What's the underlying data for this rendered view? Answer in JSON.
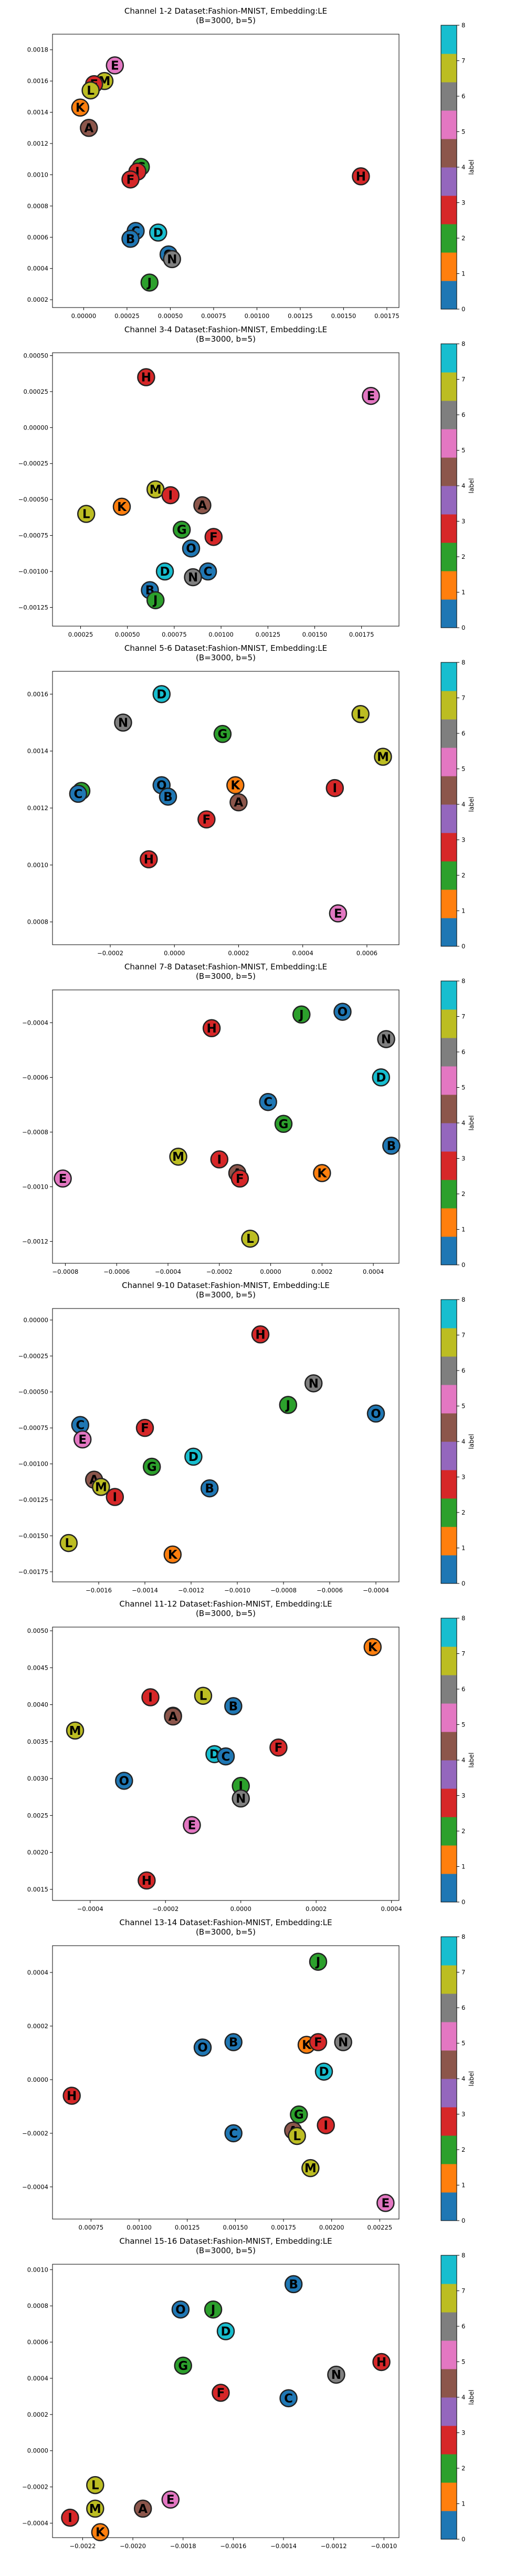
{
  "colorbar": {
    "label": "label",
    "ticks": [
      "0",
      "1",
      "2",
      "3",
      "4",
      "5",
      "6",
      "7",
      "8"
    ],
    "colors": [
      "#1f77b4",
      "#ff7f0e",
      "#2ca02c",
      "#d62728",
      "#9467bd",
      "#8c564b",
      "#e377c2",
      "#7f7f7f",
      "#bcbd22",
      "#17becf"
    ]
  },
  "label_colors": {
    "A": "#8c564b",
    "B": "#1f77b4",
    "C": "#1f77b4",
    "D": "#17becf",
    "E": "#e377c2",
    "F": "#d62728",
    "G": "#2ca02c",
    "H": "#d62728",
    "I": "#d62728",
    "J": "#2ca02c",
    "K": "#ff7f0e",
    "L": "#bcbd22",
    "M": "#bcbd22",
    "N": "#7f7f7f",
    "O": "#1f77b4"
  },
  "chart_data": [
    {
      "type": "scatter",
      "title": "Channel 1-2 Dataset:Fashion-MNIST, Embedding:LE\n(B=3000, b=5)",
      "xlim": [
        -0.00018,
        0.00182
      ],
      "ylim": [
        0.00015,
        0.0019
      ],
      "xticks": [
        "0.00000",
        "0.00025",
        "0.00050",
        "0.00075",
        "0.00100",
        "0.00125",
        "0.00150",
        "0.00175"
      ],
      "xtick_values": [
        0,
        0.00025,
        0.0005,
        0.00075,
        0.001,
        0.00125,
        0.0015,
        0.00175
      ],
      "yticks": [
        "0.0002",
        "0.0004",
        "0.0006",
        "0.0008",
        "0.0010",
        "0.0012",
        "0.0014",
        "0.0016",
        "0.0018"
      ],
      "ytick_values": [
        0.0002,
        0.0004,
        0.0006,
        0.0008,
        0.001,
        0.0012,
        0.0014,
        0.0016,
        0.0018
      ],
      "points": [
        {
          "label": "E",
          "x": 0.00018,
          "y": 0.0017
        },
        {
          "label": "M",
          "x": 0.00012,
          "y": 0.0016
        },
        {
          "label": "F",
          "x": 6e-05,
          "y": 0.00158
        },
        {
          "label": "L",
          "x": 4e-05,
          "y": 0.00154
        },
        {
          "label": "K",
          "x": -2e-05,
          "y": 0.00143
        },
        {
          "label": "A",
          "x": 3e-05,
          "y": 0.0013
        },
        {
          "label": "G",
          "x": 0.00033,
          "y": 0.00105
        },
        {
          "label": "I",
          "x": 0.00031,
          "y": 0.00102
        },
        {
          "label": "F",
          "x": 0.00027,
          "y": 0.00097
        },
        {
          "label": "H",
          "x": 0.0016,
          "y": 0.00099
        },
        {
          "label": "C",
          "x": 0.0003,
          "y": 0.00064
        },
        {
          "label": "D",
          "x": 0.00043,
          "y": 0.00063
        },
        {
          "label": "B",
          "x": 0.00027,
          "y": 0.00059
        },
        {
          "label": "O",
          "x": 0.00049,
          "y": 0.00049
        },
        {
          "label": "N",
          "x": 0.00051,
          "y": 0.00046
        },
        {
          "label": "J",
          "x": 0.00038,
          "y": 0.00031
        }
      ]
    },
    {
      "type": "scatter",
      "title": "Channel 3-4 Dataset:Fashion-MNIST, Embedding:LE\n(B=3000, b=5)",
      "xlim": [
        0.0001,
        0.00195
      ],
      "ylim": [
        -0.00138,
        0.00052
      ],
      "xticks": [
        "0.00025",
        "0.00050",
        "0.00075",
        "0.00100",
        "0.00125",
        "0.00150",
        "0.00175"
      ],
      "xtick_values": [
        0.00025,
        0.0005,
        0.00075,
        0.001,
        0.00125,
        0.0015,
        0.00175
      ],
      "yticks": [
        "−0.00125",
        "−0.00100",
        "−0.00075",
        "−0.00050",
        "−0.00025",
        "0.00000",
        "0.00025",
        "0.00050"
      ],
      "ytick_values": [
        -0.00125,
        -0.001,
        -0.00075,
        -0.0005,
        -0.00025,
        0,
        0.00025,
        0.0005
      ],
      "points": [
        {
          "label": "H",
          "x": 0.0006,
          "y": 0.00035
        },
        {
          "label": "E",
          "x": 0.0018,
          "y": 0.00022
        },
        {
          "label": "M",
          "x": 0.00065,
          "y": -0.00043
        },
        {
          "label": "I",
          "x": 0.00073,
          "y": -0.00047
        },
        {
          "label": "K",
          "x": 0.00047,
          "y": -0.00055
        },
        {
          "label": "L",
          "x": 0.00028,
          "y": -0.0006
        },
        {
          "label": "A",
          "x": 0.0009,
          "y": -0.00054
        },
        {
          "label": "G",
          "x": 0.00079,
          "y": -0.00071
        },
        {
          "label": "F",
          "x": 0.00096,
          "y": -0.00076
        },
        {
          "label": "O",
          "x": 0.00084,
          "y": -0.00084
        },
        {
          "label": "D",
          "x": 0.0007,
          "y": -0.001
        },
        {
          "label": "C",
          "x": 0.00093,
          "y": -0.001
        },
        {
          "label": "N",
          "x": 0.00085,
          "y": -0.00104
        },
        {
          "label": "B",
          "x": 0.00062,
          "y": -0.00113
        },
        {
          "label": "J",
          "x": 0.00065,
          "y": -0.0012
        }
      ]
    },
    {
      "type": "scatter",
      "title": "Channel 5-6 Dataset:Fashion-MNIST, Embedding:LE\n(B=3000, b=5)",
      "xlim": [
        -0.00038,
        0.0007
      ],
      "ylim": [
        0.00072,
        0.00168
      ],
      "xticks": [
        "−0.0002",
        "0.0000",
        "0.0002",
        "0.0004",
        "0.0006"
      ],
      "xtick_values": [
        -0.0002,
        0,
        0.0002,
        0.0004,
        0.0006
      ],
      "yticks": [
        "0.0008",
        "0.0010",
        "0.0012",
        "0.0014",
        "0.0016"
      ],
      "ytick_values": [
        0.0008,
        0.001,
        0.0012,
        0.0014,
        0.0016
      ],
      "points": [
        {
          "label": "D",
          "x": -4e-05,
          "y": 0.0016
        },
        {
          "label": "L",
          "x": 0.00058,
          "y": 0.00153
        },
        {
          "label": "N",
          "x": -0.00016,
          "y": 0.0015
        },
        {
          "label": "G",
          "x": 0.00015,
          "y": 0.00146
        },
        {
          "label": "M",
          "x": 0.00065,
          "y": 0.00138
        },
        {
          "label": "O",
          "x": -4e-05,
          "y": 0.00128
        },
        {
          "label": "K",
          "x": 0.00019,
          "y": 0.00128
        },
        {
          "label": "I",
          "x": 0.0005,
          "y": 0.00127
        },
        {
          "label": "J",
          "x": -0.00029,
          "y": 0.00126
        },
        {
          "label": "C",
          "x": -0.0003,
          "y": 0.00125
        },
        {
          "label": "B",
          "x": -2e-05,
          "y": 0.00124
        },
        {
          "label": "A",
          "x": 0.0002,
          "y": 0.00122
        },
        {
          "label": "F",
          "x": 0.0001,
          "y": 0.00116
        },
        {
          "label": "H",
          "x": -8e-05,
          "y": 0.00102
        },
        {
          "label": "E",
          "x": 0.00051,
          "y": 0.00083
        }
      ]
    },
    {
      "type": "scatter",
      "title": "Channel 7-8 Dataset:Fashion-MNIST, Embedding:LE\n(B=3000, b=5)",
      "xlim": [
        -0.00085,
        0.0005
      ],
      "ylim": [
        -0.00128,
        -0.00028
      ],
      "xticks": [
        "−0.0008",
        "−0.0006",
        "−0.0004",
        "−0.0002",
        "0.0000",
        "0.0002",
        "0.0004"
      ],
      "xtick_values": [
        -0.0008,
        -0.0006,
        -0.0004,
        -0.0002,
        0,
        0.0002,
        0.0004
      ],
      "yticks": [
        "−0.0012",
        "−0.0010",
        "−0.0008",
        "−0.0006",
        "−0.0004"
      ],
      "ytick_values": [
        -0.0012,
        -0.001,
        -0.0008,
        -0.0006,
        -0.0004
      ],
      "points": [
        {
          "label": "O",
          "x": 0.00028,
          "y": -0.00036
        },
        {
          "label": "J",
          "x": 0.00012,
          "y": -0.00037
        },
        {
          "label": "H",
          "x": -0.00023,
          "y": -0.00042
        },
        {
          "label": "N",
          "x": 0.00045,
          "y": -0.00046
        },
        {
          "label": "D",
          "x": 0.00043,
          "y": -0.0006
        },
        {
          "label": "C",
          "x": -1e-05,
          "y": -0.00069
        },
        {
          "label": "G",
          "x": 5e-05,
          "y": -0.00077
        },
        {
          "label": "B",
          "x": 0.00047,
          "y": -0.00085
        },
        {
          "label": "I",
          "x": -0.0002,
          "y": -0.0009
        },
        {
          "label": "M",
          "x": -0.00036,
          "y": -0.00089
        },
        {
          "label": "A",
          "x": -0.00013,
          "y": -0.00095
        },
        {
          "label": "F",
          "x": -0.00012,
          "y": -0.00097
        },
        {
          "label": "K",
          "x": 0.0002,
          "y": -0.00095
        },
        {
          "label": "E",
          "x": -0.00081,
          "y": -0.00097
        },
        {
          "label": "L",
          "x": -8e-05,
          "y": -0.00119
        }
      ]
    },
    {
      "type": "scatter",
      "title": "Channel 9-10 Dataset:Fashion-MNIST, Embedding:LE\n(B=3000, b=5)",
      "xlim": [
        -0.0018,
        -0.0003
      ],
      "ylim": [
        -0.00182,
        8e-05
      ],
      "xticks": [
        "−0.0016",
        "−0.0014",
        "−0.0012",
        "−0.0010",
        "−0.0008",
        "−0.0006",
        "−0.0004"
      ],
      "xtick_values": [
        -0.0016,
        -0.0014,
        -0.0012,
        -0.001,
        -0.0008,
        -0.0006,
        -0.0004
      ],
      "yticks": [
        "−0.00175",
        "−0.00150",
        "−0.00125",
        "−0.00100",
        "−0.00075",
        "−0.00050",
        "−0.00025",
        "0.00000"
      ],
      "ytick_values": [
        -0.00175,
        -0.0015,
        -0.00125,
        -0.001,
        -0.00075,
        -0.0005,
        -0.00025,
        0
      ],
      "points": [
        {
          "label": "H",
          "x": -0.0009,
          "y": -0.0001
        },
        {
          "label": "N",
          "x": -0.00067,
          "y": -0.00044
        },
        {
          "label": "J",
          "x": -0.00078,
          "y": -0.00059
        },
        {
          "label": "O",
          "x": -0.0004,
          "y": -0.00065
        },
        {
          "label": "C",
          "x": -0.00168,
          "y": -0.00073
        },
        {
          "label": "F",
          "x": -0.0014,
          "y": -0.00075
        },
        {
          "label": "E",
          "x": -0.00167,
          "y": -0.00083
        },
        {
          "label": "D",
          "x": -0.00119,
          "y": -0.00095
        },
        {
          "label": "G",
          "x": -0.00137,
          "y": -0.00102
        },
        {
          "label": "A",
          "x": -0.00162,
          "y": -0.00111
        },
        {
          "label": "M",
          "x": -0.00159,
          "y": -0.00116
        },
        {
          "label": "B",
          "x": -0.00112,
          "y": -0.00117
        },
        {
          "label": "I",
          "x": -0.00153,
          "y": -0.00123
        },
        {
          "label": "L",
          "x": -0.00173,
          "y": -0.00155
        },
        {
          "label": "K",
          "x": -0.00128,
          "y": -0.00163
        }
      ]
    },
    {
      "type": "scatter",
      "title": "Channel 11-12 Dataset:Fashion-MNIST, Embedding:LE\n(B=3000, b=5)",
      "xlim": [
        -0.0005,
        0.00042
      ],
      "ylim": [
        0.00135,
        0.00505
      ],
      "xticks": [
        "−0.0004",
        "−0.0002",
        "0.0000",
        "0.0002",
        "0.0004"
      ],
      "xtick_values": [
        -0.0004,
        -0.0002,
        0,
        0.0002,
        0.0004
      ],
      "yticks": [
        "0.0015",
        "0.0020",
        "0.0025",
        "0.0030",
        "0.0035",
        "0.0040",
        "0.0045",
        "0.0050"
      ],
      "ytick_values": [
        0.0015,
        0.002,
        0.0025,
        0.003,
        0.0035,
        0.004,
        0.0045,
        0.005
      ],
      "points": [
        {
          "label": "K",
          "x": 0.00035,
          "y": 0.00478
        },
        {
          "label": "I",
          "x": -0.00024,
          "y": 0.0041
        },
        {
          "label": "L",
          "x": -0.0001,
          "y": 0.00412
        },
        {
          "label": "B",
          "x": -2e-05,
          "y": 0.00398
        },
        {
          "label": "G",
          "x": -0.00018,
          "y": 0.00385
        },
        {
          "label": "A",
          "x": -0.00018,
          "y": 0.00384
        },
        {
          "label": "M",
          "x": -0.00044,
          "y": 0.00365
        },
        {
          "label": "F",
          "x": 0.0001,
          "y": 0.00342
        },
        {
          "label": "D",
          "x": -7e-05,
          "y": 0.00333
        },
        {
          "label": "C",
          "x": -4e-05,
          "y": 0.0033
        },
        {
          "label": "O",
          "x": -0.00031,
          "y": 0.00297
        },
        {
          "label": "J",
          "x": 0.0,
          "y": 0.0029
        },
        {
          "label": "N",
          "x": 0.0,
          "y": 0.00273
        },
        {
          "label": "E",
          "x": -0.00013,
          "y": 0.00237
        },
        {
          "label": "H",
          "x": -0.00025,
          "y": 0.00162
        }
      ]
    },
    {
      "type": "scatter",
      "title": "Channel 13-14 Dataset:Fashion-MNIST, Embedding:LE\n(B=3000, b=5)",
      "xlim": [
        0.00055,
        0.00235
      ],
      "ylim": [
        -0.00052,
        0.0005
      ],
      "xticks": [
        "0.00075",
        "0.00100",
        "0.00125",
        "0.00150",
        "0.00175",
        "0.00200",
        "0.00225"
      ],
      "xtick_values": [
        0.00075,
        0.001,
        0.00125,
        0.0015,
        0.00175,
        0.002,
        0.00225
      ],
      "yticks": [
        "−0.0004",
        "−0.0002",
        "0.0000",
        "0.0002",
        "0.0004"
      ],
      "ytick_values": [
        -0.0004,
        -0.0002,
        0,
        0.0002,
        0.0004
      ],
      "points": [
        {
          "label": "J",
          "x": 0.00193,
          "y": 0.00044
        },
        {
          "label": "O",
          "x": 0.00133,
          "y": 0.00012
        },
        {
          "label": "B",
          "x": 0.00149,
          "y": 0.00014
        },
        {
          "label": "K",
          "x": 0.00187,
          "y": 0.00013
        },
        {
          "label": "F",
          "x": 0.00193,
          "y": 0.00014
        },
        {
          "label": "N",
          "x": 0.00206,
          "y": 0.00014
        },
        {
          "label": "D",
          "x": 0.00196,
          "y": 3e-05
        },
        {
          "label": "H",
          "x": 0.00065,
          "y": -6e-05
        },
        {
          "label": "G",
          "x": 0.00183,
          "y": -0.00013
        },
        {
          "label": "I",
          "x": 0.00197,
          "y": -0.00017
        },
        {
          "label": "C",
          "x": 0.00149,
          "y": -0.0002
        },
        {
          "label": "A",
          "x": 0.0018,
          "y": -0.00019
        },
        {
          "label": "L",
          "x": 0.00182,
          "y": -0.00021
        },
        {
          "label": "M",
          "x": 0.00189,
          "y": -0.00033
        },
        {
          "label": "E",
          "x": 0.00228,
          "y": -0.00046
        }
      ]
    },
    {
      "type": "scatter",
      "title": "Channel 15-16 Dataset:Fashion-MNIST, Embedding:LE\n(B=3000, b=5)",
      "xlim": [
        -0.00232,
        -0.00094
      ],
      "ylim": [
        -0.00048,
        0.00103
      ],
      "xticks": [
        "−0.0022",
        "−0.0020",
        "−0.0018",
        "−0.0016",
        "−0.0014",
        "−0.0012",
        "−0.0010"
      ],
      "xtick_values": [
        -0.0022,
        -0.002,
        -0.0018,
        -0.0016,
        -0.0014,
        -0.0012,
        -0.001
      ],
      "yticks": [
        "−0.0004",
        "−0.0002",
        "0.0000",
        "0.0002",
        "0.0004",
        "0.0006",
        "0.0008",
        "0.0010"
      ],
      "ytick_values": [
        -0.0004,
        -0.0002,
        0,
        0.0002,
        0.0004,
        0.0006,
        0.0008,
        0.001
      ],
      "points": [
        {
          "label": "B",
          "x": -0.00136,
          "y": 0.00092
        },
        {
          "label": "O",
          "x": -0.00181,
          "y": 0.00078
        },
        {
          "label": "J",
          "x": -0.00168,
          "y": 0.00078
        },
        {
          "label": "D",
          "x": -0.00163,
          "y": 0.00066
        },
        {
          "label": "G",
          "x": -0.0018,
          "y": 0.00047
        },
        {
          "label": "N",
          "x": -0.00119,
          "y": 0.00042
        },
        {
          "label": "H",
          "x": -0.00101,
          "y": 0.00049
        },
        {
          "label": "F",
          "x": -0.00165,
          "y": 0.00032
        },
        {
          "label": "C",
          "x": -0.00138,
          "y": 0.00029
        },
        {
          "label": "L",
          "x": -0.00215,
          "y": -0.00019
        },
        {
          "label": "E",
          "x": -0.00185,
          "y": -0.00027
        },
        {
          "label": "M",
          "x": -0.00215,
          "y": -0.00032
        },
        {
          "label": "A",
          "x": -0.00196,
          "y": -0.00032
        },
        {
          "label": "I",
          "x": -0.00225,
          "y": -0.00037
        },
        {
          "label": "K",
          "x": -0.00213,
          "y": -0.00045
        }
      ]
    }
  ]
}
